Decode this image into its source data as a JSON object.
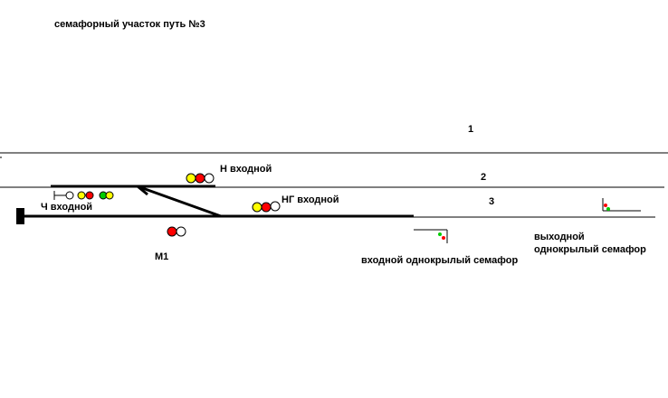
{
  "title": "семафорный участок путь №3",
  "tracks": {
    "track_1": "1",
    "track_2": "2",
    "track_3": "3"
  },
  "signals": {
    "n_entry": {
      "label": "Н входной",
      "lights": [
        "yellow",
        "red",
        "white"
      ]
    },
    "ng_entry": {
      "label": "НГ входной",
      "lights": [
        "yellow",
        "red",
        "white"
      ]
    },
    "ch_entry": {
      "label": "Ч входной",
      "lights": [
        "white",
        "yellow",
        "red",
        "green",
        "yellow"
      ]
    },
    "m1": {
      "label": "М1",
      "lights": [
        "red",
        "white"
      ]
    }
  },
  "semaphores": {
    "entry": {
      "label": "входной однокрылый семафор",
      "lights": [
        "green",
        "red"
      ]
    },
    "exit": {
      "line1": "выходной",
      "line2": "однокрылый семафор",
      "lights": [
        "red",
        "green"
      ]
    }
  },
  "colors": {
    "yellow": "#ffff00",
    "red": "#ff0000",
    "white": "#ffffff",
    "green": "#00cc00",
    "track": "#000000"
  }
}
